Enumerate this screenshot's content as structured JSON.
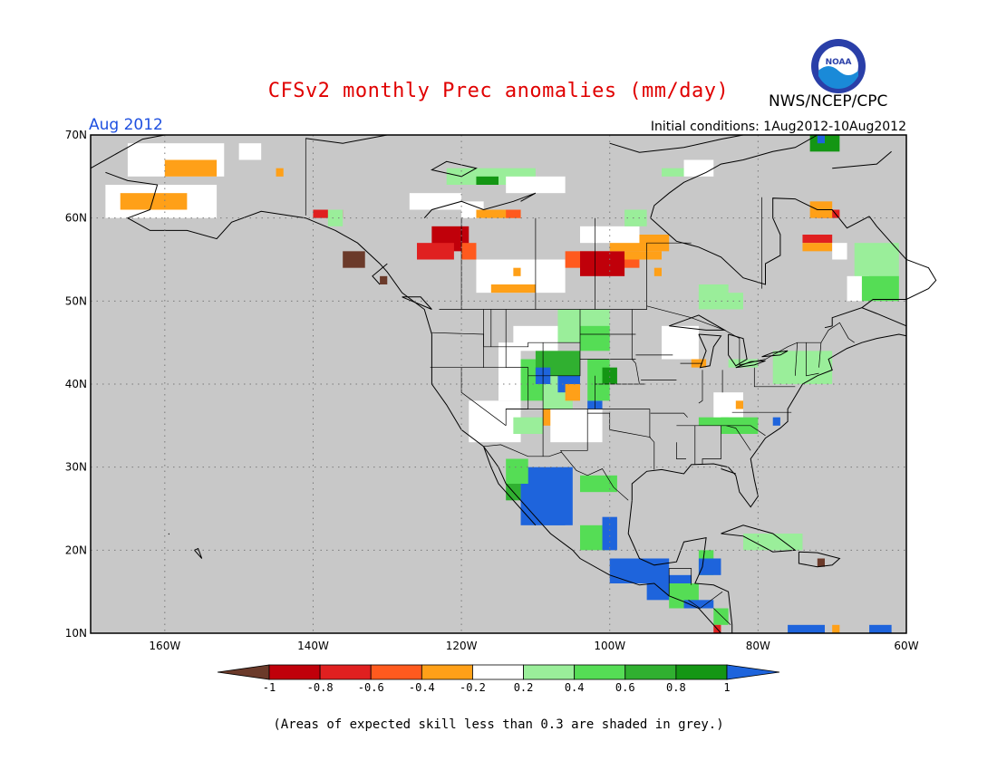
{
  "header": {
    "title": "CFSv2 monthly Prec anomalies (mm/day)",
    "organization": "NWS/NCEP/CPC",
    "period": "Aug 2012",
    "initial_conditions": "Initial conditions: 1Aug2012-10Aug2012",
    "logo_text": "NOAA"
  },
  "colors": {
    "title": "#e00000",
    "period": "#1e50e0",
    "land_grey": "#c8c8c8",
    "grid": "#7a7a7a"
  },
  "map": {
    "lat_labels": [
      "70N",
      "60N",
      "50N",
      "40N",
      "30N",
      "20N",
      "10N"
    ],
    "lon_labels": [
      "160W",
      "140W",
      "120W",
      "100W",
      "80W",
      "60W"
    ],
    "lat_range": [
      10,
      70
    ],
    "lon_range": [
      -170,
      -60
    ],
    "legend": {
      "labels": [
        "-1",
        "-0.8",
        "-0.6",
        "-0.4",
        "-0.2",
        "0.2",
        "0.4",
        "0.6",
        "0.8",
        "1"
      ],
      "colors": [
        "#6b3a2a",
        "#c0000a",
        "#e02020",
        "#ff5a1e",
        "#ffa018",
        "#ffffff",
        "#9aee9a",
        "#55dd55",
        "#30b030",
        "#149614",
        "#1e64dc"
      ]
    }
  },
  "footnote": "(Areas of expected skill less than 0.3 are shaded in grey.)"
}
